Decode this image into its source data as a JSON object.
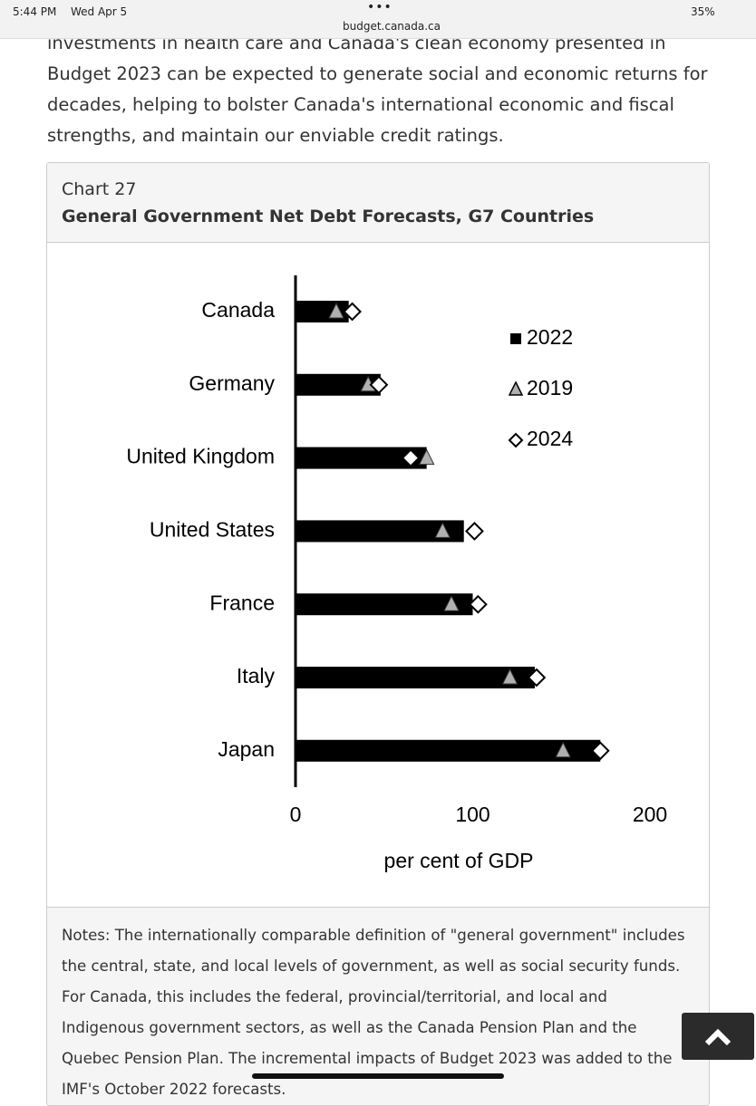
{
  "status_bar": {
    "time": "5:44 PM",
    "date": "Wed Apr 5",
    "url": "budget.canada.ca",
    "battery": "35%"
  },
  "body_lines": [
    "investments in health care and Canada's clean economy presented in",
    "Budget 2023 can be expected to generate social and economic returns for",
    "decades, helping to bolster Canada's international economic and fiscal",
    "strengths, and maintain our enviable credit ratings."
  ],
  "card": {
    "label": "Chart 27",
    "heading": "General Government Net Debt Forecasts, G7 Countries",
    "notes": "Notes: The internationally comparable definition of \"general government\" includes the central, state, and local levels of government, as well as social security funds. For Canada, this includes the federal, provincial/territorial, and local and Indigenous government sectors, as well as the Canada Pension Plan and the Quebec Pension Plan. The incremental impacts of Budget 2023 was added to the IMF's October 2022 forecasts."
  },
  "chart_data": {
    "type": "bar",
    "orientation": "horizontal",
    "categories": [
      "Canada",
      "Germany",
      "United Kingdom",
      "United States",
      "France",
      "Italy",
      "Japan"
    ],
    "series": [
      {
        "name": "2022",
        "color": "#000000",
        "marker": "bar",
        "values": [
          30,
          48,
          74,
          95,
          100,
          135,
          172
        ]
      },
      {
        "name": "2019",
        "color": "#b0b0b0",
        "marker": "triangle",
        "values": [
          23,
          41,
          74,
          83,
          88,
          121,
          151
        ]
      },
      {
        "name": "2024",
        "color": "#ffffff",
        "marker": "diamond",
        "values": [
          32,
          47,
          65,
          101,
          103,
          136,
          172
        ]
      }
    ],
    "xlim": [
      0,
      200
    ],
    "xticks": [
      0,
      100,
      200
    ],
    "xlabel": "per cent of GDP",
    "grid": false,
    "legend": "upper right"
  }
}
